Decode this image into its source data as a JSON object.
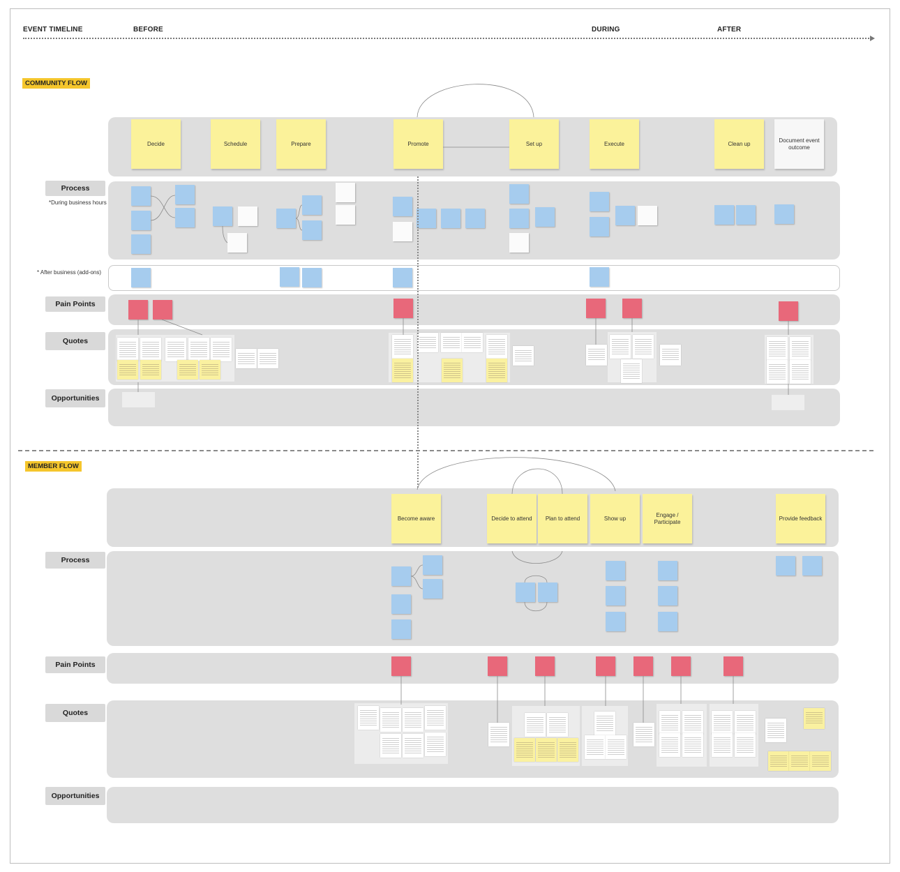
{
  "timeline": {
    "title": "EVENT TIMELINE",
    "phases": [
      "BEFORE",
      "DURING",
      "AFTER"
    ]
  },
  "community_flow": {
    "tag": "COMMUNITY FLOW",
    "stages": [
      "Decide",
      "Schedule",
      "Prepare",
      "Promote",
      "Set up",
      "Execute",
      "Clean up",
      "Document event outcome"
    ],
    "row_labels": {
      "process": "Process",
      "pain_points": "Pain Points",
      "quotes": "Quotes",
      "opportunities": "Opportunities"
    },
    "process_note": "*During business hours",
    "after_business_note": "* After business (add-ons)"
  },
  "member_flow": {
    "tag": "MEMBER FLOW",
    "stages": [
      "Become aware",
      "Decide to attend",
      "Plan to attend",
      "Show up",
      "Engage / Participate",
      "Provide feedback"
    ],
    "row_labels": {
      "process": "Process",
      "pain_points": "Pain Points",
      "quotes": "Quotes",
      "opportunities": "Opportunities"
    }
  },
  "colors": {
    "stage_sticky": "#fbf29a",
    "process_sticky": "#a6ccee",
    "pain_sticky": "#e8687a",
    "quote_highlight": "#faf1a0",
    "flow_tag": "#f5c62c",
    "lane": "#dedede"
  }
}
